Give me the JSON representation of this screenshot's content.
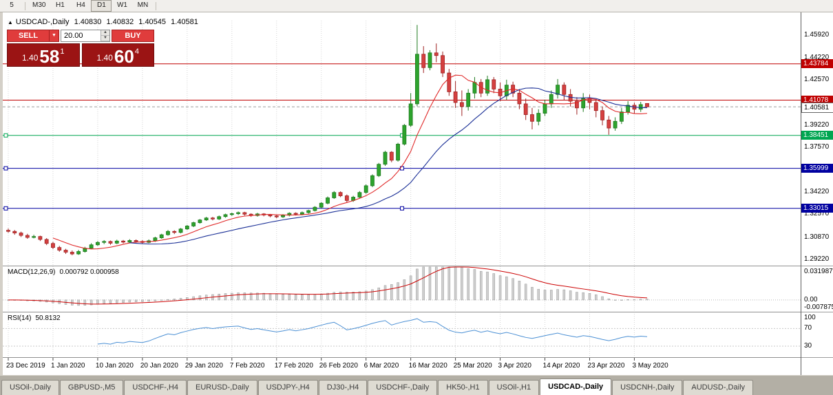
{
  "toolbar": {
    "timeframes": [
      "5",
      "M30",
      "H1",
      "H4",
      "D1",
      "W1",
      "MN"
    ],
    "active": "D1"
  },
  "ohlc": {
    "symbol": "USDCAD-,Daily",
    "open": "1.40830",
    "high": "1.40832",
    "low": "1.40545",
    "close": "1.40581"
  },
  "trade": {
    "sell": "SELL",
    "buy": "BUY",
    "volume": "20.00",
    "sell_price": {
      "big": "1.40",
      "mid": "58",
      "sup": "1"
    },
    "buy_price": {
      "big": "1.40",
      "mid": "60",
      "sup": "4"
    }
  },
  "indicators": {
    "macd_label": "MACD(12,26,9)",
    "macd_values": "0.000792 0.000958",
    "rsi_label": "RSI(14)",
    "rsi_value": "50.8132"
  },
  "tabs": {
    "items": [
      {
        "label": "USOil-,Daily",
        "active": false
      },
      {
        "label": "GBPUSD-,M5",
        "active": false
      },
      {
        "label": "USDCHF-,H4",
        "active": false
      },
      {
        "label": "EURUSD-,Daily",
        "active": false
      },
      {
        "label": "USDJPY-,H4",
        "active": false
      },
      {
        "label": "DJ30-,H4",
        "active": false
      },
      {
        "label": "USDCHF-,Daily",
        "active": false
      },
      {
        "label": "HK50-,H1",
        "active": false
      },
      {
        "label": "USOil-,H1",
        "active": false
      },
      {
        "label": "USDCAD-,Daily",
        "active": true
      },
      {
        "label": "USDCNH-,Daily",
        "active": false
      },
      {
        "label": "AUDUSD-,Daily",
        "active": false
      }
    ]
  },
  "chart_data": {
    "type": "candlestick",
    "symbol": "USDCAD",
    "period": "Daily",
    "ylim": [
      1.288,
      1.47
    ],
    "axis_ticks": [
      "1.45920",
      "1.44220",
      "1.42570",
      "1.39220",
      "1.37570",
      "1.34220",
      "1.32570",
      "1.30870",
      "1.29220"
    ],
    "colors": {
      "up": "#2da32d",
      "up_border": "#1d7a1d",
      "down": "#d54040",
      "down_border": "#9e2020",
      "grid": "#d4d4d4",
      "ma_fast": "#e02828",
      "ma_slow": "#1a2f96",
      "macd_hist": "#cfcfcf",
      "macd_hist_border": "#9a9a9a",
      "macd_signal": "#cc0000",
      "rsi_line": "#4a8fd4"
    },
    "ma": [
      {
        "period": 8,
        "color": "#e02828"
      },
      {
        "period": 20,
        "color": "#1a2f96"
      }
    ],
    "hlines": [
      {
        "price": 1.43784,
        "color": "#c00000",
        "style": "solid",
        "badge": "1.43784",
        "badge_bg": "#c00000",
        "badge_fg": "#ffffff",
        "markers": false
      },
      {
        "price": 1.41078,
        "color": "#c00000",
        "style": "solid",
        "badge": "1.41078",
        "badge_bg": "#c00000",
        "badge_fg": "#ffffff",
        "markers": false
      },
      {
        "price": 1.40581,
        "color": "#999999",
        "style": "dash",
        "badge": "1.40581",
        "badge_bg": "#ffffff",
        "badge_fg": "#000000",
        "badge_border": "#666666",
        "markers": false
      },
      {
        "price": 1.38451,
        "color": "#00a651",
        "style": "solid",
        "badge": "1.38451",
        "badge_bg": "#00a651",
        "badge_fg": "#ffffff",
        "markers": true
      },
      {
        "price": 1.35999,
        "color": "#0000a0",
        "style": "solid",
        "badge": "1.35999",
        "badge_bg": "#0000a0",
        "badge_fg": "#ffffff",
        "markers": true
      },
      {
        "price": 1.33015,
        "color": "#0000a0",
        "style": "solid",
        "badge": "1.33015",
        "badge_bg": "#0000a0",
        "badge_fg": "#ffffff",
        "markers": true
      }
    ],
    "x_ticks": [
      {
        "index": 0,
        "label": "23 Dec 2019"
      },
      {
        "index": 7,
        "label": "1 Jan 2020"
      },
      {
        "index": 14,
        "label": "10 Jan 2020"
      },
      {
        "index": 21,
        "label": "20 Jan 2020"
      },
      {
        "index": 28,
        "label": "29 Jan 2020"
      },
      {
        "index": 35,
        "label": "7 Feb 2020"
      },
      {
        "index": 42,
        "label": "17 Feb 2020"
      },
      {
        "index": 49,
        "label": "26 Feb 2020"
      },
      {
        "index": 56,
        "label": "6 Mar 2020"
      },
      {
        "index": 63,
        "label": "16 Mar 2020"
      },
      {
        "index": 70,
        "label": "25 Mar 2020"
      },
      {
        "index": 77,
        "label": "3 Apr 2020"
      },
      {
        "index": 84,
        "label": "14 Apr 2020"
      },
      {
        "index": 91,
        "label": "23 Apr 2020"
      },
      {
        "index": 98,
        "label": "3 May 2020"
      }
    ],
    "candles": [
      [
        1.3138,
        1.3152,
        1.312,
        1.313
      ],
      [
        1.313,
        1.314,
        1.3105,
        1.3118
      ],
      [
        1.3118,
        1.3128,
        1.3088,
        1.31
      ],
      [
        1.31,
        1.3112,
        1.3075,
        1.3085
      ],
      [
        1.3085,
        1.3105,
        1.3078,
        1.3092
      ],
      [
        1.3092,
        1.3098,
        1.3058,
        1.307
      ],
      [
        1.307,
        1.308,
        1.3028,
        1.304
      ],
      [
        1.304,
        1.3052,
        1.2998,
        1.301
      ],
      [
        1.301,
        1.3022,
        1.2978,
        1.299
      ],
      [
        1.299,
        1.3,
        1.2962,
        1.2975
      ],
      [
        1.2975,
        1.2988,
        1.2952,
        1.2962
      ],
      [
        1.2962,
        1.2992,
        1.2955,
        1.298
      ],
      [
        1.298,
        1.3015,
        1.2972,
        1.3005
      ],
      [
        1.3005,
        1.3042,
        1.2998,
        1.303
      ],
      [
        1.303,
        1.3058,
        1.3022,
        1.3048
      ],
      [
        1.3048,
        1.3065,
        1.3035,
        1.3055
      ],
      [
        1.3055,
        1.3062,
        1.303,
        1.3042
      ],
      [
        1.3042,
        1.3068,
        1.3035,
        1.3058
      ],
      [
        1.3058,
        1.3066,
        1.304,
        1.305
      ],
      [
        1.305,
        1.3072,
        1.3044,
        1.3062
      ],
      [
        1.3062,
        1.307,
        1.3045,
        1.3055
      ],
      [
        1.3055,
        1.3064,
        1.3038,
        1.3048
      ],
      [
        1.3048,
        1.307,
        1.3042,
        1.306
      ],
      [
        1.306,
        1.309,
        1.3052,
        1.3082
      ],
      [
        1.3082,
        1.3112,
        1.3075,
        1.3105
      ],
      [
        1.3105,
        1.314,
        1.3098,
        1.313
      ],
      [
        1.313,
        1.3138,
        1.311,
        1.3122
      ],
      [
        1.3122,
        1.3155,
        1.3115,
        1.3148
      ],
      [
        1.3148,
        1.3178,
        1.314,
        1.317
      ],
      [
        1.317,
        1.3202,
        1.3162,
        1.3195
      ],
      [
        1.3195,
        1.3222,
        1.3188,
        1.3215
      ],
      [
        1.3215,
        1.3238,
        1.3208,
        1.323
      ],
      [
        1.323,
        1.3238,
        1.3212,
        1.3222
      ],
      [
        1.3222,
        1.3248,
        1.3215,
        1.324
      ],
      [
        1.324,
        1.3262,
        1.3232,
        1.3255
      ],
      [
        1.3255,
        1.327,
        1.3245,
        1.3262
      ],
      [
        1.3262,
        1.3278,
        1.3252,
        1.327
      ],
      [
        1.327,
        1.3276,
        1.3248,
        1.3258
      ],
      [
        1.3258,
        1.3265,
        1.3238,
        1.3248
      ],
      [
        1.3248,
        1.3268,
        1.324,
        1.326
      ],
      [
        1.326,
        1.3266,
        1.3242,
        1.3252
      ],
      [
        1.3252,
        1.326,
        1.3235,
        1.3245
      ],
      [
        1.3245,
        1.3252,
        1.3228,
        1.3238
      ],
      [
        1.3238,
        1.3258,
        1.323,
        1.325
      ],
      [
        1.325,
        1.3272,
        1.3242,
        1.3265
      ],
      [
        1.3265,
        1.3272,
        1.3248,
        1.3258
      ],
      [
        1.3258,
        1.3278,
        1.325,
        1.327
      ],
      [
        1.327,
        1.3292,
        1.3262,
        1.3285
      ],
      [
        1.3285,
        1.3318,
        1.3278,
        1.331
      ],
      [
        1.331,
        1.3348,
        1.3302,
        1.334
      ],
      [
        1.334,
        1.339,
        1.3332,
        1.338
      ],
      [
        1.338,
        1.343,
        1.3372,
        1.342
      ],
      [
        1.342,
        1.3428,
        1.3385,
        1.3395
      ],
      [
        1.3395,
        1.3405,
        1.3345,
        1.336
      ],
      [
        1.336,
        1.3395,
        1.335,
        1.3385
      ],
      [
        1.3385,
        1.343,
        1.3375,
        1.342
      ],
      [
        1.342,
        1.348,
        1.341,
        1.347
      ],
      [
        1.347,
        1.3555,
        1.346,
        1.3545
      ],
      [
        1.3545,
        1.364,
        1.3535,
        1.363
      ],
      [
        1.363,
        1.373,
        1.3618,
        1.372
      ],
      [
        1.372,
        1.3728,
        1.3645,
        1.366
      ],
      [
        1.366,
        1.379,
        1.365,
        1.378
      ],
      [
        1.378,
        1.393,
        1.377,
        1.392
      ],
      [
        1.392,
        1.416,
        1.3908,
        1.408
      ],
      [
        1.408,
        1.4668,
        1.4062,
        1.445
      ],
      [
        1.445,
        1.451,
        1.431,
        1.435
      ],
      [
        1.435,
        1.448,
        1.433,
        1.446
      ],
      [
        1.446,
        1.453,
        1.439,
        1.444
      ],
      [
        1.444,
        1.447,
        1.428,
        1.431
      ],
      [
        1.431,
        1.434,
        1.414,
        1.417
      ],
      [
        1.417,
        1.425,
        1.405,
        1.409
      ],
      [
        1.409,
        1.418,
        1.399,
        1.406
      ],
      [
        1.406,
        1.419,
        1.403,
        1.416
      ],
      [
        1.416,
        1.428,
        1.412,
        1.424
      ],
      [
        1.424,
        1.4265,
        1.413,
        1.416
      ],
      [
        1.416,
        1.429,
        1.414,
        1.426
      ],
      [
        1.426,
        1.428,
        1.416,
        1.419
      ],
      [
        1.419,
        1.424,
        1.41,
        1.414
      ],
      [
        1.414,
        1.426,
        1.411,
        1.422
      ],
      [
        1.422,
        1.4245,
        1.413,
        1.416
      ],
      [
        1.416,
        1.419,
        1.404,
        1.408
      ],
      [
        1.408,
        1.412,
        1.396,
        1.4
      ],
      [
        1.4,
        1.405,
        1.389,
        1.395
      ],
      [
        1.395,
        1.404,
        1.392,
        1.401
      ],
      [
        1.401,
        1.411,
        1.399,
        1.408
      ],
      [
        1.408,
        1.418,
        1.405,
        1.415
      ],
      [
        1.415,
        1.4265,
        1.412,
        1.422
      ],
      [
        1.422,
        1.424,
        1.411,
        1.415
      ],
      [
        1.415,
        1.419,
        1.406,
        1.41
      ],
      [
        1.41,
        1.413,
        1.4,
        1.405
      ],
      [
        1.405,
        1.416,
        1.402,
        1.412
      ],
      [
        1.412,
        1.415,
        1.404,
        1.409
      ],
      [
        1.409,
        1.411,
        1.398,
        1.403
      ],
      [
        1.403,
        1.406,
        1.392,
        1.396
      ],
      [
        1.396,
        1.399,
        1.385,
        1.39
      ],
      [
        1.39,
        1.398,
        1.388,
        1.395
      ],
      [
        1.395,
        1.405,
        1.393,
        1.402
      ],
      [
        1.402,
        1.41,
        1.4,
        1.407
      ],
      [
        1.407,
        1.409,
        1.401,
        1.404
      ],
      [
        1.404,
        1.4095,
        1.402,
        1.4075
      ],
      [
        1.4083,
        1.40832,
        1.40545,
        1.40581
      ]
    ],
    "macd": {
      "params": "12,26,9",
      "values": [
        0.000792,
        0.000958
      ],
      "ylim": [
        -0.0079,
        0.0235
      ],
      "axis": [
        "0.031987",
        "0.00",
        "-0.007875"
      ]
    },
    "rsi": {
      "period": 14,
      "value": 50.8132,
      "ylim": [
        5,
        105
      ],
      "axis": [
        {
          "v": 100,
          "label": "100"
        },
        {
          "v": 70,
          "label": "70"
        },
        {
          "v": 30,
          "label": "30"
        }
      ],
      "levels": [
        70,
        30
      ]
    }
  }
}
